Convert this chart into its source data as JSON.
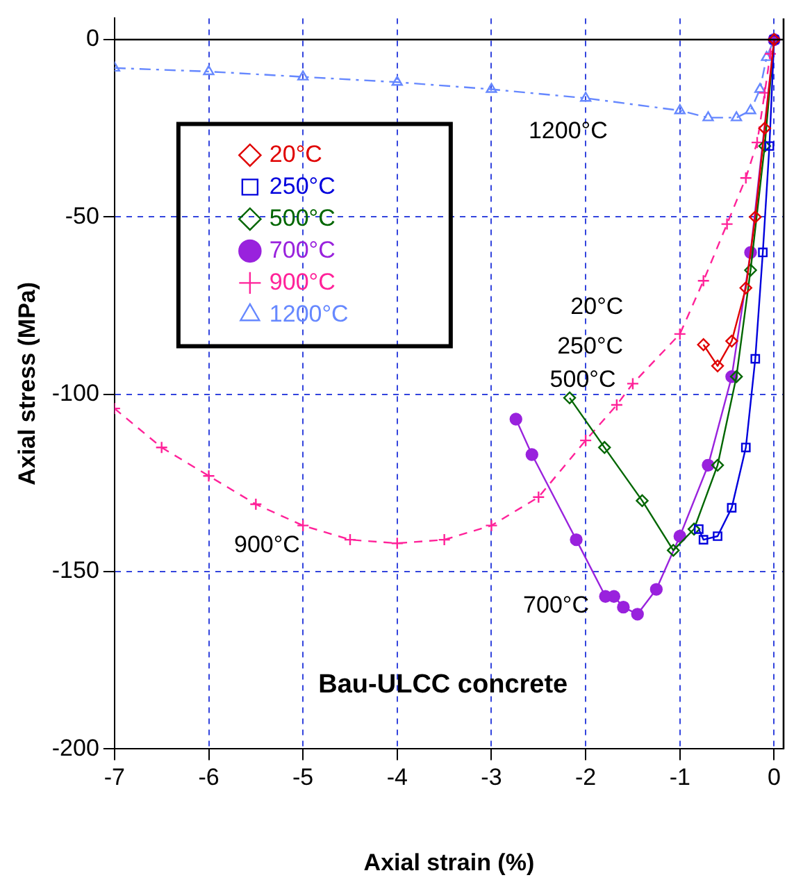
{
  "chart_data": {
    "type": "line",
    "xlabel": "Axial strain (%)",
    "ylabel": "Axial stress (MPa)",
    "xlim": [
      -7,
      0.1
    ],
    "xticks": [
      -7,
      -6,
      -5,
      -4,
      -3,
      -2,
      -1,
      0
    ],
    "ylim": [
      -200,
      6
    ],
    "yticks": [
      -200,
      -150,
      -100,
      -50,
      0
    ],
    "grid": true,
    "legend": "top left",
    "series": [
      {
        "name": "20°C",
        "color": "#e00000",
        "marker": "diamond",
        "line_style": "solid",
        "x": [
          0,
          -0.1,
          -0.2,
          -0.3,
          -0.45,
          -0.6,
          -0.75
        ],
        "values": [
          0,
          -25,
          -50,
          -70,
          -85,
          -92,
          -86
        ]
      },
      {
        "name": "250°C",
        "color": "#0000dd",
        "marker": "square",
        "line_style": "solid",
        "x": [
          0,
          -0.05,
          -0.12,
          -0.2,
          -0.3,
          -0.45,
          -0.6,
          -0.75,
          -0.8
        ],
        "values": [
          0,
          -30,
          -60,
          -90,
          -115,
          -132,
          -140,
          -141,
          -138
        ]
      },
      {
        "name": "500°C",
        "color": "#006600",
        "marker": "diamond",
        "line_style": "solid",
        "x": [
          0,
          -0.1,
          -0.25,
          -0.4,
          -0.6,
          -0.85,
          -1.07,
          -1.4,
          -1.8,
          -2.17
        ],
        "values": [
          0,
          -30,
          -65,
          -95,
          -120,
          -138,
          -144,
          -130,
          -115,
          -101
        ]
      },
      {
        "name": "700°C",
        "color": "#9922dd",
        "marker": "circle",
        "line_style": "solid",
        "x": [
          0,
          -0.25,
          -0.45,
          -0.7,
          -1,
          -1.25,
          -1.45,
          -1.6,
          -1.7,
          -1.79,
          -2.1,
          -2.57,
          -2.74
        ],
        "values": [
          0,
          -60,
          -95,
          -120,
          -140,
          -155,
          -162,
          -160,
          -157,
          -157,
          -141,
          -117,
          -107
        ]
      },
      {
        "name": "900°C",
        "color": "#ff2299",
        "marker": "cross",
        "line_style": "dashed",
        "x": [
          -7,
          -6.5,
          -6,
          -5.5,
          -5,
          -4.5,
          -4,
          -3.5,
          -3,
          -2.5,
          -2,
          -1.67,
          -1.5,
          -1,
          -0.75,
          -0.5,
          -0.3,
          -0.18,
          -0.1,
          -0.04,
          0
        ],
        "values": [
          -104,
          -115,
          -123,
          -131,
          -137,
          -141,
          -142,
          -141,
          -137,
          -129,
          -113,
          -103,
          -97,
          -83,
          -68,
          -52,
          -39,
          -29,
          -15,
          -4,
          0
        ]
      },
      {
        "name": "1200°C",
        "color": "#6688ff",
        "marker": "triangle",
        "line_style": "dashdot",
        "x": [
          -7,
          -6,
          -5,
          -4,
          -3,
          -2,
          -1,
          -0.7,
          -0.4,
          -0.25,
          -0.15,
          -0.08,
          0
        ],
        "values": [
          -8,
          -9,
          -10.5,
          -12,
          -14,
          -16.5,
          -20,
          -22,
          -22,
          -20,
          -14,
          -5,
          0
        ]
      }
    ],
    "annotations": [
      "1200°C",
      "20°C",
      "250°C",
      "500°C",
      "900°C",
      "700°C",
      "Bau-ULCC concrete"
    ]
  }
}
